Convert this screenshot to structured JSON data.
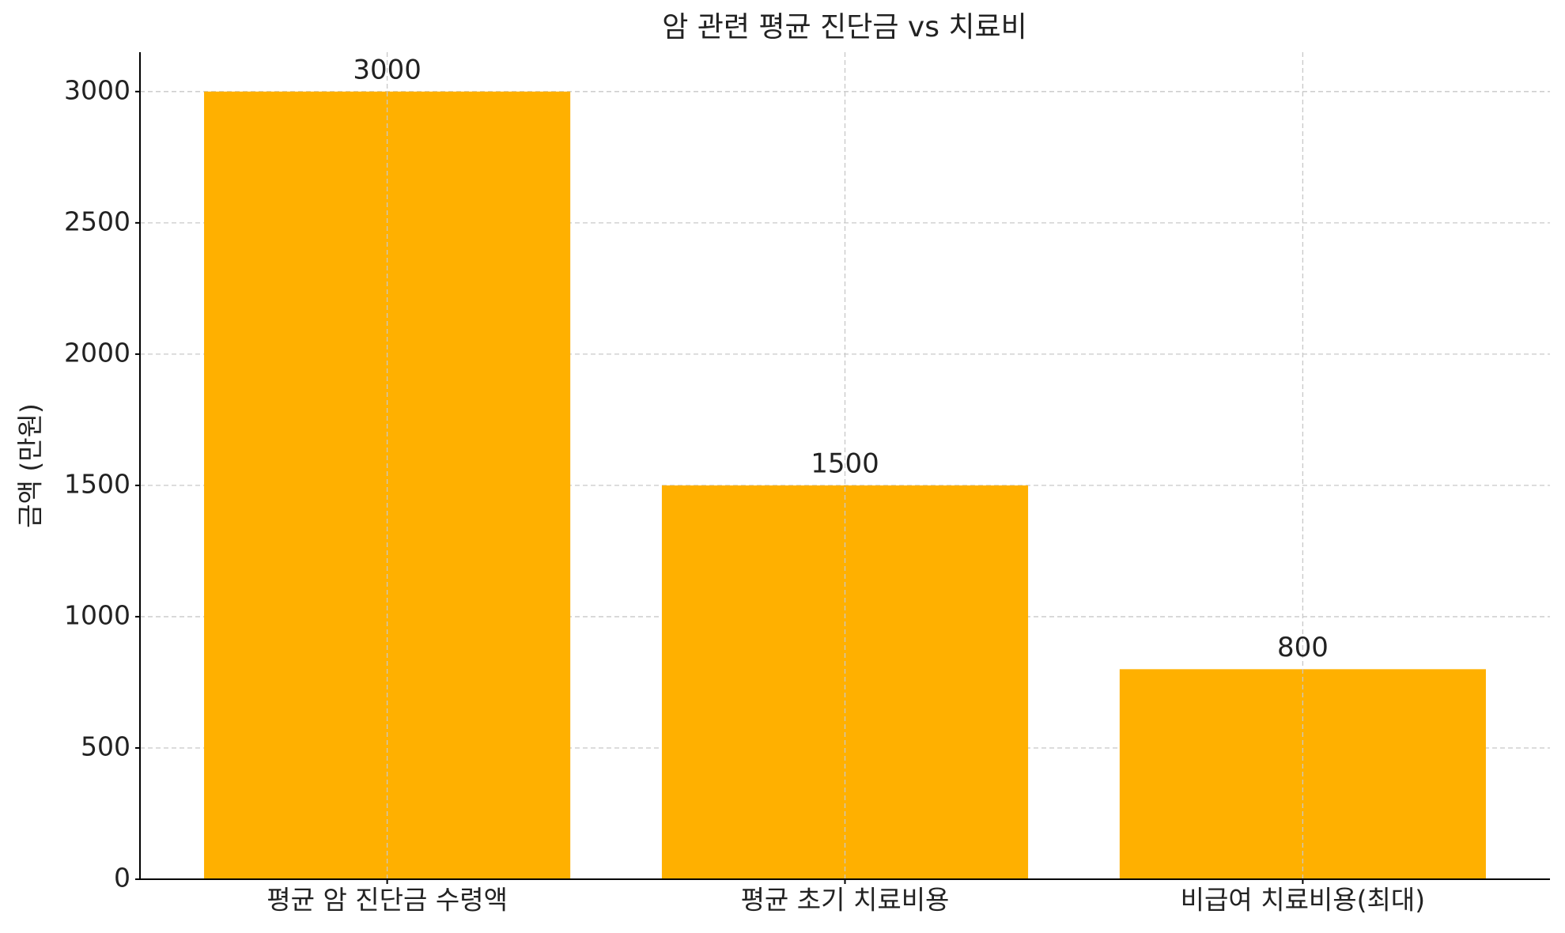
{
  "chart_data": {
    "type": "bar",
    "title": "암 관련 평균 진단금 vs 치료비",
    "y_label": "금액 (만원)",
    "categories": [
      "평균 암 진단금 수령액",
      "평균 초기 치료비용",
      "비급여 치료비용(최대)"
    ],
    "values": [
      3000,
      1500,
      800
    ],
    "color": "#ffb000",
    "ylim": [
      0,
      3150
    ],
    "yticks": [
      0,
      500,
      1000,
      1500,
      2000,
      2500,
      3000
    ],
    "grid": true
  }
}
